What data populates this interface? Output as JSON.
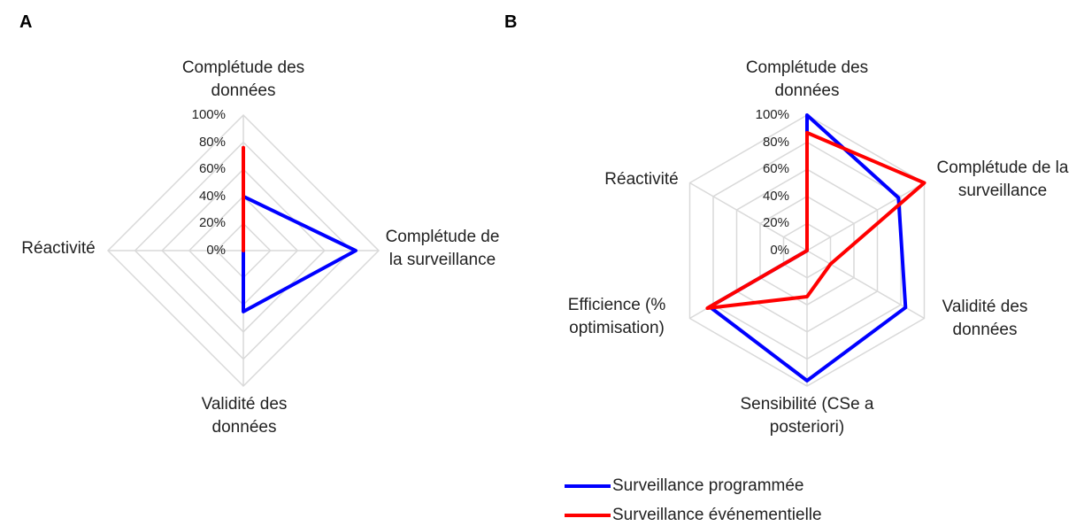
{
  "chart_data": [
    {
      "type": "radar",
      "title": "A",
      "categories": [
        "Complétude des données",
        "Complétude de la surveillance",
        "Validité des données",
        "Réactivité"
      ],
      "series": [
        {
          "color": "#0000ff",
          "values": [
            40,
            83,
            45,
            0
          ]
        },
        {
          "color": "#ff0000",
          "values": [
            76,
            0,
            0,
            0
          ]
        }
      ],
      "ylim": [
        0,
        100
      ],
      "yticks": [
        {
          "value": 0,
          "label": "0%"
        },
        {
          "value": 20,
          "label": "20%"
        },
        {
          "value": 40,
          "label": "40%"
        },
        {
          "value": 60,
          "label": "60%"
        },
        {
          "value": 80,
          "label": "80%"
        },
        {
          "value": 100,
          "label": "100%"
        }
      ],
      "grid": true
    },
    {
      "type": "radar",
      "title": "B",
      "categories": [
        "Complétude des données",
        "Complétude de la surveillance",
        "Validité des données",
        "Sensibilité (CSe a posteriori)",
        "Efficience (% optimisation)",
        "Réactivité"
      ],
      "series": [
        {
          "name": "Surveillance programmée",
          "color": "#0000ff",
          "values": [
            100,
            78,
            84,
            96,
            83,
            0
          ]
        },
        {
          "name": "Surveillance événementielle",
          "color": "#ff0000",
          "values": [
            87,
            100,
            20,
            34,
            85,
            0
          ]
        }
      ],
      "ylim": [
        0,
        100
      ],
      "yticks": [
        {
          "value": 0,
          "label": "0%"
        },
        {
          "value": 20,
          "label": "20%"
        },
        {
          "value": 40,
          "label": "40%"
        },
        {
          "value": 60,
          "label": "60%"
        },
        {
          "value": 80,
          "label": "80%"
        },
        {
          "value": 100,
          "label": "100%"
        }
      ],
      "grid": true,
      "legend": "bottom"
    }
  ]
}
